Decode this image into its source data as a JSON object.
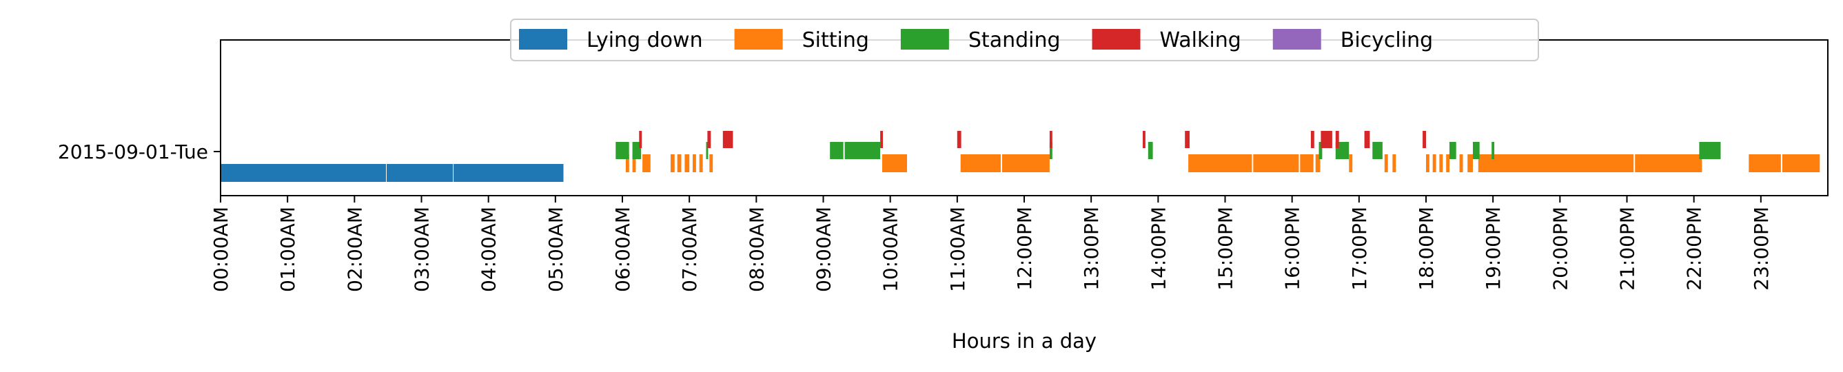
{
  "chart_data": {
    "type": "timeline",
    "title": "",
    "xlabel": "Hours in a day",
    "ylabel": "",
    "xlim": [
      0,
      24
    ],
    "x_ticks": [
      {
        "hour": 0,
        "label": "00:00AM"
      },
      {
        "hour": 1,
        "label": "01:00AM"
      },
      {
        "hour": 2,
        "label": "02:00AM"
      },
      {
        "hour": 3,
        "label": "03:00AM"
      },
      {
        "hour": 4,
        "label": "04:00AM"
      },
      {
        "hour": 5,
        "label": "05:00AM"
      },
      {
        "hour": 6,
        "label": "06:00AM"
      },
      {
        "hour": 7,
        "label": "07:00AM"
      },
      {
        "hour": 8,
        "label": "08:00AM"
      },
      {
        "hour": 9,
        "label": "09:00AM"
      },
      {
        "hour": 10,
        "label": "10:00AM"
      },
      {
        "hour": 11,
        "label": "11:00AM"
      },
      {
        "hour": 12,
        "label": "12:00PM"
      },
      {
        "hour": 13,
        "label": "13:00PM"
      },
      {
        "hour": 14,
        "label": "14:00PM"
      },
      {
        "hour": 15,
        "label": "15:00PM"
      },
      {
        "hour": 16,
        "label": "16:00PM"
      },
      {
        "hour": 17,
        "label": "17:00PM"
      },
      {
        "hour": 18,
        "label": "18:00PM"
      },
      {
        "hour": 19,
        "label": "19:00PM"
      },
      {
        "hour": 20,
        "label": "20:00PM"
      },
      {
        "hour": 21,
        "label": "21:00PM"
      },
      {
        "hour": 22,
        "label": "22:00PM"
      },
      {
        "hour": 23,
        "label": "23:00PM"
      }
    ],
    "day_label": "2015-09-01-Tue",
    "grid": false,
    "legend_position": "top-center",
    "series": [
      {
        "name": "Lying down",
        "color": "#1f77b4",
        "segments": [
          [
            0.0,
            2.47
          ],
          [
            2.48,
            3.47
          ],
          [
            3.48,
            5.12
          ]
        ]
      },
      {
        "name": "Sitting",
        "color": "#ff7f0e",
        "segments": [
          [
            6.05,
            6.1
          ],
          [
            6.15,
            6.2
          ],
          [
            6.3,
            6.42
          ],
          [
            6.72,
            6.78
          ],
          [
            6.82,
            6.88
          ],
          [
            6.93,
            7.0
          ],
          [
            7.05,
            7.1
          ],
          [
            7.15,
            7.2
          ],
          [
            7.3,
            7.35
          ],
          [
            9.88,
            10.25
          ],
          [
            11.05,
            11.65
          ],
          [
            11.67,
            12.38
          ],
          [
            14.45,
            15.4
          ],
          [
            15.42,
            16.1
          ],
          [
            16.12,
            16.32
          ],
          [
            16.35,
            16.42
          ],
          [
            16.85,
            16.9
          ],
          [
            17.38,
            17.43
          ],
          [
            17.5,
            17.55
          ],
          [
            18.0,
            18.05
          ],
          [
            18.1,
            18.15
          ],
          [
            18.2,
            18.25
          ],
          [
            18.3,
            18.35
          ],
          [
            18.5,
            18.55
          ],
          [
            18.62,
            18.7
          ],
          [
            18.78,
            21.1
          ],
          [
            21.12,
            22.12
          ],
          [
            22.82,
            23.3
          ],
          [
            23.32,
            23.88
          ]
        ]
      },
      {
        "name": "Standing",
        "color": "#2ca02c",
        "segments": [
          [
            5.9,
            6.1
          ],
          [
            6.15,
            6.28
          ],
          [
            7.25,
            7.28
          ],
          [
            9.1,
            9.3
          ],
          [
            9.32,
            9.85
          ],
          [
            12.38,
            12.42
          ],
          [
            13.85,
            13.92
          ],
          [
            16.4,
            16.45
          ],
          [
            16.65,
            16.85
          ],
          [
            17.2,
            17.35
          ],
          [
            18.35,
            18.45
          ],
          [
            18.7,
            18.8
          ],
          [
            18.98,
            19.02
          ],
          [
            22.08,
            22.4
          ]
        ]
      },
      {
        "name": "Walking",
        "color": "#d62728",
        "segments": [
          [
            6.25,
            6.29
          ],
          [
            7.27,
            7.32
          ],
          [
            7.5,
            7.65
          ],
          [
            9.85,
            9.89
          ],
          [
            11.0,
            11.06
          ],
          [
            12.38,
            12.42
          ],
          [
            13.77,
            13.81
          ],
          [
            14.4,
            14.47
          ],
          [
            16.28,
            16.33
          ],
          [
            16.43,
            16.6
          ],
          [
            16.65,
            16.7
          ],
          [
            17.08,
            17.16
          ],
          [
            17.95,
            18.0
          ]
        ]
      },
      {
        "name": "Bicycling",
        "color": "#9467bd",
        "segments": []
      }
    ]
  }
}
